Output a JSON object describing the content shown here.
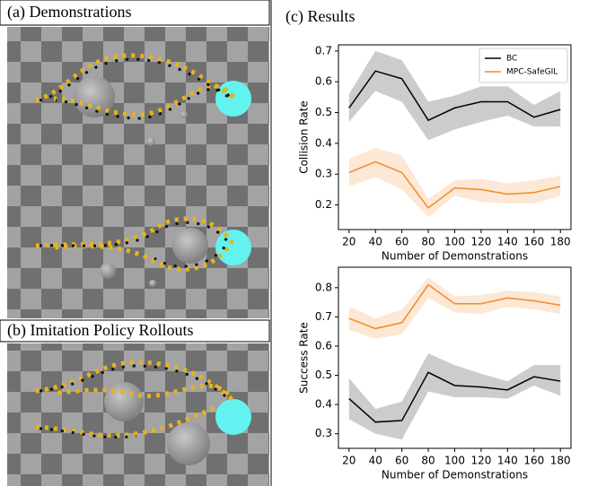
{
  "panels": {
    "a": "(a) Demonstrations",
    "b": "(b) Imitation Policy Rollouts",
    "c": "(c) Results"
  },
  "chart_data": [
    {
      "type": "line",
      "ylabel": "Collision Rate",
      "xlabel": "Number of Demonstrations",
      "x": [
        20,
        40,
        60,
        80,
        100,
        120,
        140,
        160,
        180
      ],
      "xlim": [
        12,
        188
      ],
      "xticks": [
        20,
        40,
        60,
        80,
        100,
        120,
        140,
        160,
        180
      ],
      "ylim": [
        0.12,
        0.72
      ],
      "yticks": [
        0.2,
        0.3,
        0.4,
        0.5,
        0.6,
        0.7
      ],
      "legend": "upper right",
      "series": [
        {
          "name": "BC",
          "color": "#000000",
          "values": [
            0.515,
            0.635,
            0.61,
            0.475,
            0.515,
            0.535,
            0.535,
            0.485,
            0.51
          ],
          "lower": [
            0.47,
            0.57,
            0.535,
            0.41,
            0.445,
            0.47,
            0.49,
            0.455,
            0.455
          ],
          "upper": [
            0.56,
            0.7,
            0.67,
            0.535,
            0.555,
            0.585,
            0.585,
            0.525,
            0.57
          ]
        },
        {
          "name": "MPC-SafeGIL",
          "color": "#f28a2a",
          "values": [
            0.305,
            0.34,
            0.305,
            0.19,
            0.255,
            0.25,
            0.235,
            0.24,
            0.26
          ],
          "lower": [
            0.26,
            0.29,
            0.25,
            0.16,
            0.23,
            0.21,
            0.205,
            0.205,
            0.23
          ],
          "upper": [
            0.35,
            0.385,
            0.36,
            0.22,
            0.28,
            0.285,
            0.27,
            0.28,
            0.295
          ]
        }
      ]
    },
    {
      "type": "line",
      "ylabel": "Success Rate",
      "xlabel": "Number of Demonstrations",
      "x": [
        20,
        40,
        60,
        80,
        100,
        120,
        140,
        160,
        180
      ],
      "xlim": [
        12,
        188
      ],
      "xticks": [
        20,
        40,
        60,
        80,
        100,
        120,
        140,
        160,
        180
      ],
      "ylim": [
        0.25,
        0.87
      ],
      "yticks": [
        0.3,
        0.4,
        0.5,
        0.6,
        0.7,
        0.8
      ],
      "series": [
        {
          "color": "#f28a2a",
          "values": [
            0.695,
            0.66,
            0.68,
            0.81,
            0.745,
            0.745,
            0.765,
            0.755,
            0.74
          ],
          "lower": [
            0.655,
            0.625,
            0.64,
            0.765,
            0.715,
            0.71,
            0.735,
            0.725,
            0.71
          ],
          "upper": [
            0.735,
            0.695,
            0.725,
            0.835,
            0.77,
            0.775,
            0.79,
            0.785,
            0.77
          ]
        },
        {
          "color": "#000000",
          "values": [
            0.42,
            0.34,
            0.345,
            0.51,
            0.465,
            0.46,
            0.45,
            0.495,
            0.48
          ],
          "lower": [
            0.35,
            0.3,
            0.28,
            0.445,
            0.425,
            0.425,
            0.42,
            0.465,
            0.43
          ],
          "upper": [
            0.49,
            0.385,
            0.41,
            0.575,
            0.535,
            0.505,
            0.48,
            0.535,
            0.535
          ]
        }
      ]
    }
  ]
}
